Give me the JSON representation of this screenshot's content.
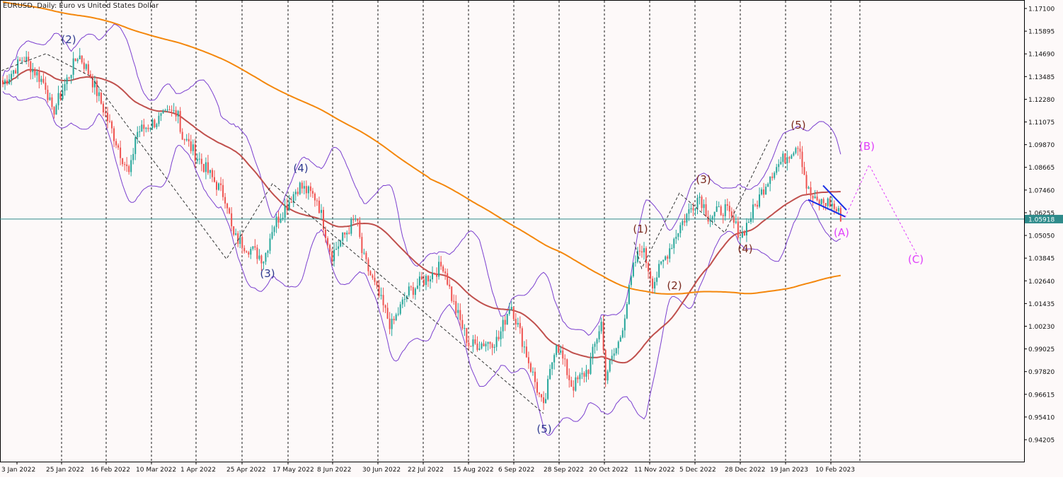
{
  "window_title": "EURUSD, Daily:  Euro vs United States Dollar",
  "current_price_label": "1.05918",
  "colors": {
    "background": "#fdf9f9",
    "grid": "#1a1a1a",
    "bull_candle": "#26a69a",
    "bear_candle": "#ef5350",
    "ma_slow": "#f4870c",
    "ma_mid": "#c0504d",
    "bollinger": "#7b3fcf",
    "wave_blue": "#2f3a8f",
    "wave_brown": "#7a2a1f",
    "wave_magenta": "#e040fb",
    "wedge": "#1a2ee6",
    "price_line": "#2e8b8b"
  },
  "chart_data": {
    "type": "candlestick",
    "title": "EURUSD, Daily:  Euro vs United States Dollar",
    "y_ticks": [
      "1.17100",
      "1.15895",
      "1.14690",
      "1.13485",
      "1.12280",
      "1.11075",
      "1.09870",
      "1.08665",
      "1.07460",
      "1.06255",
      "1.05050",
      "1.03845",
      "1.02640",
      "1.01435",
      "1.00230",
      "0.99025",
      "0.97820",
      "0.96615",
      "0.95410",
      "0.94205"
    ],
    "ylim": [
      0.9335,
      1.177
    ],
    "x_ticks": [
      "3 Jan 2022",
      "25 Jan 2022",
      "16 Feb 2022",
      "10 Mar 2022",
      "1 Apr 2022",
      "25 Apr 2022",
      "17 May 2022",
      "8 Jun 2022",
      "30 Jun 2022",
      "22 Jul 2022",
      "15 Aug 2022",
      "6 Sep 2022",
      "28 Sep 2022",
      "20 Oct 2022",
      "11 Nov 2022",
      "5 Dec 2022",
      "28 Dec 2022",
      "19 Jan 2023",
      "10 Feb 2023"
    ],
    "current_price": 1.05918,
    "price_path": [
      {
        "date": "3 Jan 2022",
        "close": 1.13
      },
      {
        "date": "14 Jan 2022",
        "close": 1.145
      },
      {
        "date": "25 Jan 2022",
        "close": 1.13
      },
      {
        "date": "28 Jan 2022",
        "close": 1.115
      },
      {
        "date": "10 Feb 2022",
        "close": 1.147
      },
      {
        "date": "16 Feb 2022",
        "close": 1.135
      },
      {
        "date": "7 Mar 2022",
        "close": 1.082
      },
      {
        "date": "10 Mar 2022",
        "close": 1.105
      },
      {
        "date": "31 Mar 2022",
        "close": 1.118
      },
      {
        "date": "1 Apr 2022",
        "close": 1.105
      },
      {
        "date": "25 Apr 2022",
        "close": 1.07
      },
      {
        "date": "28 Apr 2022",
        "close": 1.05
      },
      {
        "date": "13 May 2022",
        "close": 1.038
      },
      {
        "date": "17 May 2022",
        "close": 1.055
      },
      {
        "date": "30 May 2022",
        "close": 1.077
      },
      {
        "date": "8 Jun 2022",
        "close": 1.07
      },
      {
        "date": "15 Jun 2022",
        "close": 1.04
      },
      {
        "date": "27 Jun 2022",
        "close": 1.06
      },
      {
        "date": "30 Jun 2022",
        "close": 1.04
      },
      {
        "date": "14 Jul 2022",
        "close": 1.002
      },
      {
        "date": "22 Jul 2022",
        "close": 1.02
      },
      {
        "date": "10 Aug 2022",
        "close": 1.035
      },
      {
        "date": "15 Aug 2022",
        "close": 1.015
      },
      {
        "date": "23 Aug 2022",
        "close": 0.992
      },
      {
        "date": "6 Sep 2022",
        "close": 0.995
      },
      {
        "date": "12 Sep 2022",
        "close": 1.015
      },
      {
        "date": "28 Sep 2022",
        "close": 0.958
      },
      {
        "date": "4 Oct 2022",
        "close": 0.995
      },
      {
        "date": "12 Oct 2022",
        "close": 0.97
      },
      {
        "date": "20 Oct 2022",
        "close": 0.98
      },
      {
        "date": "26 Oct 2022",
        "close": 1.005
      },
      {
        "date": "28 Oct 2022",
        "close": 0.976
      },
      {
        "date": "4 Nov 2022",
        "close": 0.995
      },
      {
        "date": "11 Nov 2022",
        "close": 1.035
      },
      {
        "date": "15 Nov 2022",
        "close": 1.045
      },
      {
        "date": "21 Nov 2022",
        "close": 1.025
      },
      {
        "date": "5 Dec 2022",
        "close": 1.055
      },
      {
        "date": "15 Dec 2022",
        "close": 1.072
      },
      {
        "date": "20 Dec 2022",
        "close": 1.06
      },
      {
        "date": "28 Dec 2022",
        "close": 1.065
      },
      {
        "date": "5 Jan 2023",
        "close": 1.05
      },
      {
        "date": "19 Jan 2023",
        "close": 1.083
      },
      {
        "date": "2 Feb 2023",
        "close": 1.1
      },
      {
        "date": "6 Feb 2023",
        "close": 1.075
      },
      {
        "date": "10 Feb 2023",
        "close": 1.068
      },
      {
        "date": "17 Feb 2023",
        "close": 1.068
      },
      {
        "date": "23 Feb 2023",
        "close": 1.06
      }
    ],
    "wave_labels": [
      {
        "text": "(2)",
        "date": "25 Jan 2022",
        "price": 1.1545,
        "group": "blue"
      },
      {
        "text": "(3)",
        "date": "25 Apr 2022",
        "price": 1.0345,
        "group": "blue"
      },
      {
        "text": "(4)",
        "date": "17 May 2022",
        "price": 1.087,
        "group": "blue"
      },
      {
        "text": "(5)",
        "date": "28 Sep 2022",
        "price": 0.9475,
        "group": "blue"
      },
      {
        "text": "(1)",
        "date": "11 Nov 2022",
        "price": 1.0555,
        "group": "brown"
      },
      {
        "text": "(2)",
        "date": "15 Nov 2022",
        "price": 1.025,
        "group": "brown"
      },
      {
        "text": "(3)",
        "date": "5 Dec 2022",
        "price": 1.0785,
        "group": "brown"
      },
      {
        "text": "(4)",
        "date": "28 Dec 2022",
        "price": 1.044,
        "group": "brown"
      },
      {
        "text": "(5)",
        "date": "19 Jan 2023",
        "price": 1.109,
        "group": "brown"
      },
      {
        "text": "(A)",
        "date": "17 Feb 2023",
        "price": 1.054,
        "group": "magenta"
      },
      {
        "text": "(B)",
        "date": "23 Feb 2023",
        "price": 1.0955,
        "group": "magenta"
      },
      {
        "text": "(C)",
        "date": "23 Feb 2023",
        "price": 1.0405,
        "group": "magenta"
      }
    ],
    "grid": "vertical dotted",
    "legend": "none"
  }
}
